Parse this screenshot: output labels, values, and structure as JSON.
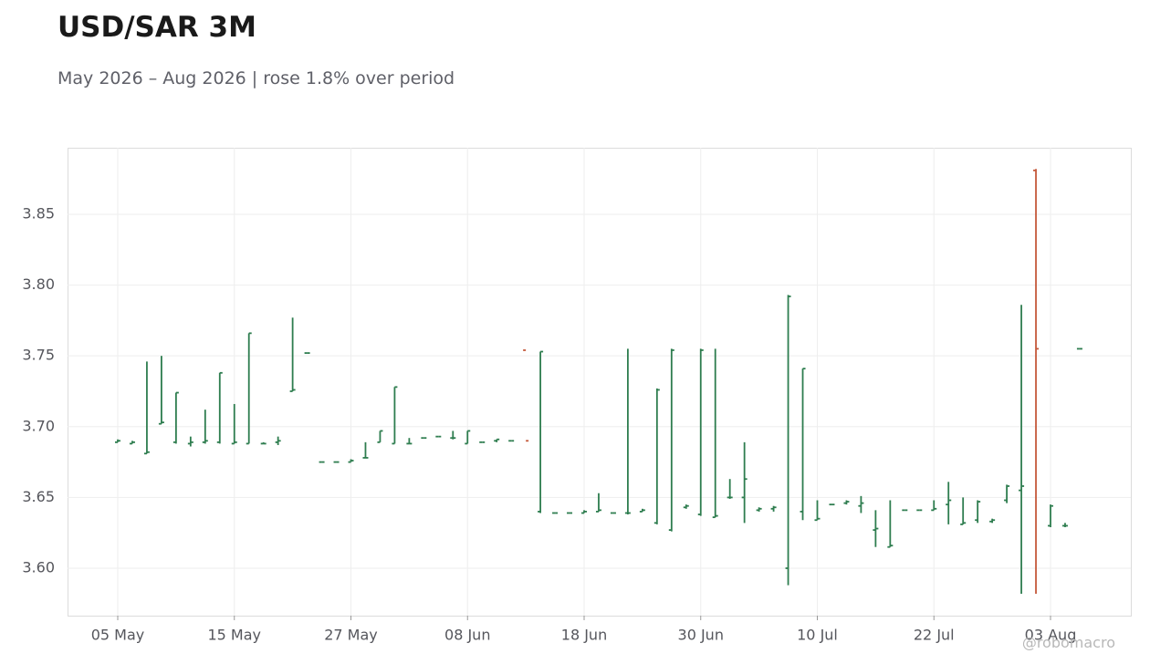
{
  "chart_data": {
    "type": "ohlc",
    "title": "USD/SAR 3M",
    "subtitle": "May 2026 – Aug 2026 | rose 1.8% over period",
    "watermark": "@robomacro",
    "up_color": "#2e7d4f",
    "down_color": "#c4583a",
    "grid": true,
    "categories": [
      "05 May",
      null,
      null,
      null,
      null,
      null,
      null,
      null,
      "15 May",
      null,
      null,
      null,
      null,
      null,
      null,
      null,
      "27 May",
      null,
      null,
      null,
      null,
      null,
      null,
      null,
      "08 Jun",
      null,
      null,
      null,
      null,
      null,
      null,
      null,
      "18 Jun",
      null,
      null,
      null,
      null,
      null,
      null,
      null,
      "30 Jun",
      null,
      null,
      null,
      null,
      null,
      null,
      null,
      "10 Jul",
      null,
      null,
      null,
      null,
      null,
      null,
      null,
      "22 Jul",
      null,
      null,
      null,
      null,
      null,
      null,
      null,
      "03 Aug",
      null,
      null
    ],
    "open": [
      3.689,
      3.688,
      3.681,
      3.702,
      3.689,
      3.688,
      3.689,
      3.689,
      3.688,
      3.688,
      3.688,
      3.689,
      3.725,
      3.752,
      3.675,
      3.675,
      3.675,
      3.678,
      3.689,
      3.688,
      3.688,
      3.692,
      3.693,
      3.692,
      3.688,
      3.689,
      3.69,
      3.69,
      3.754,
      3.64,
      3.639,
      3.639,
      3.639,
      3.64,
      3.639,
      3.639,
      3.64,
      3.632,
      3.627,
      3.643,
      3.638,
      3.636,
      3.65,
      3.65,
      3.641,
      3.642,
      3.6,
      3.64,
      3.634,
      3.645,
      3.646,
      3.644,
      3.627,
      3.615,
      3.641,
      3.641,
      3.641,
      3.645,
      3.631,
      3.634,
      3.633,
      3.648,
      3.655,
      3.881,
      3.63,
      3.63,
      3.755
    ],
    "high": [
      3.691,
      3.69,
      3.746,
      3.75,
      3.724,
      3.693,
      3.712,
      3.738,
      3.716,
      3.766,
      3.689,
      3.693,
      3.777,
      3.752,
      3.675,
      3.675,
      3.677,
      3.689,
      3.697,
      3.728,
      3.692,
      3.692,
      3.693,
      3.697,
      3.697,
      3.689,
      3.691,
      3.69,
      null,
      3.753,
      3.639,
      3.639,
      3.641,
      3.653,
      3.639,
      3.755,
      3.642,
      3.727,
      3.755,
      3.645,
      3.755,
      3.755,
      3.663,
      3.689,
      3.643,
      3.644,
      3.793,
      3.741,
      3.648,
      3.645,
      3.648,
      3.651,
      3.641,
      3.648,
      3.641,
      3.641,
      3.648,
      3.661,
      3.65,
      3.648,
      3.635,
      3.659,
      3.786,
      3.882,
      3.645,
      3.632,
      3.755
    ],
    "low": [
      3.689,
      3.688,
      3.681,
      3.702,
      3.688,
      3.686,
      3.688,
      3.688,
      3.688,
      3.688,
      3.688,
      3.687,
      3.725,
      3.752,
      3.675,
      3.675,
      3.675,
      3.678,
      3.689,
      3.688,
      3.688,
      3.692,
      3.693,
      3.691,
      3.688,
      3.689,
      3.689,
      3.69,
      null,
      3.639,
      3.639,
      3.639,
      3.639,
      3.64,
      3.639,
      3.638,
      3.64,
      3.631,
      3.626,
      3.642,
      3.637,
      3.636,
      3.649,
      3.632,
      3.64,
      3.64,
      3.588,
      3.634,
      3.634,
      3.645,
      3.645,
      3.639,
      3.615,
      3.615,
      3.641,
      3.641,
      3.641,
      3.631,
      3.631,
      3.632,
      3.632,
      3.646,
      3.582,
      3.582,
      3.629,
      3.629,
      3.755
    ],
    "close": [
      3.69,
      3.689,
      3.682,
      3.703,
      3.724,
      3.689,
      3.69,
      3.738,
      3.689,
      3.766,
      3.688,
      3.69,
      3.726,
      3.752,
      3.675,
      3.675,
      3.676,
      3.678,
      3.697,
      3.728,
      3.688,
      3.692,
      3.693,
      3.692,
      3.697,
      3.689,
      3.691,
      3.69,
      3.69,
      3.753,
      3.639,
      3.639,
      3.64,
      3.641,
      3.639,
      3.639,
      3.641,
      3.726,
      3.754,
      3.644,
      3.754,
      3.637,
      3.65,
      3.663,
      3.642,
      3.643,
      3.792,
      3.741,
      3.635,
      3.645,
      3.647,
      3.646,
      3.628,
      3.616,
      3.641,
      3.641,
      3.642,
      3.648,
      3.632,
      3.647,
      3.634,
      3.658,
      3.658,
      3.755,
      3.644,
      3.63,
      3.755
    ],
    "ylim": [
      3.5665,
      3.897
    ],
    "yticks": [
      {
        "value": 3.6,
        "label": "3.60"
      },
      3.65,
      {
        "value": 3.7,
        "label": "3.70"
      },
      3.75,
      {
        "value": 3.8,
        "label": "3.80"
      },
      3.85
    ]
  }
}
